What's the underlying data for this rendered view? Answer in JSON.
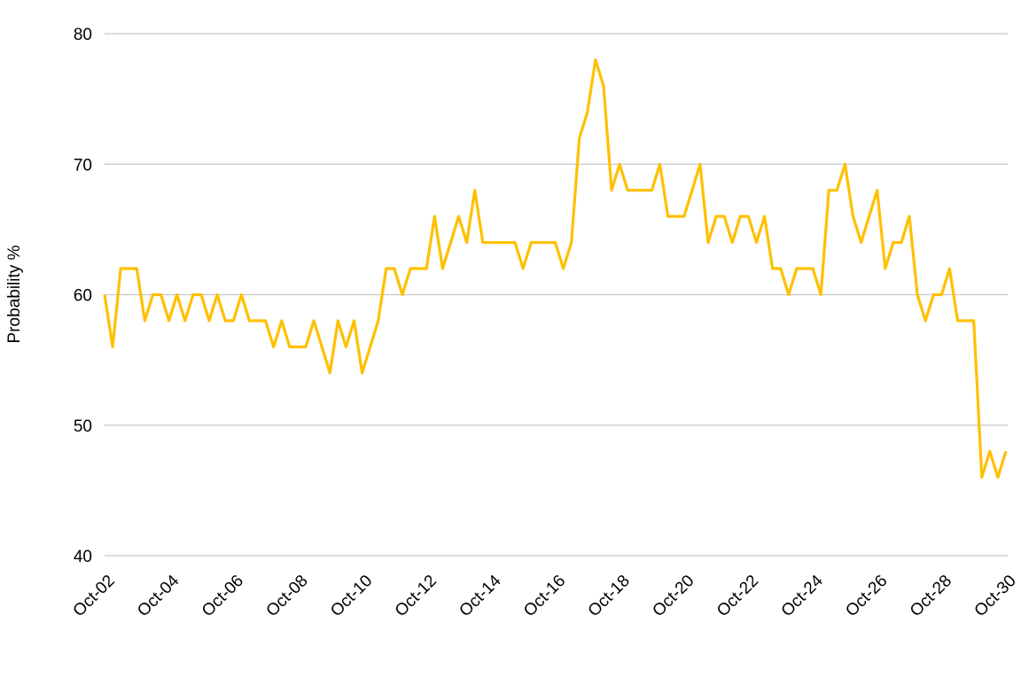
{
  "chart_data": {
    "type": "line",
    "y_label": "Probability  %",
    "categories": [
      "Oct-02",
      null,
      null,
      null,
      null,
      null,
      null,
      null,
      "Oct-04",
      null,
      null,
      null,
      null,
      null,
      null,
      null,
      "Oct-06",
      null,
      null,
      null,
      null,
      null,
      null,
      null,
      "Oct-08",
      null,
      null,
      null,
      null,
      null,
      null,
      null,
      "Oct-10",
      null,
      null,
      null,
      null,
      null,
      null,
      null,
      "Oct-12",
      null,
      null,
      null,
      null,
      null,
      null,
      null,
      "Oct-14",
      null,
      null,
      null,
      null,
      null,
      null,
      null,
      "Oct-16",
      null,
      null,
      null,
      null,
      null,
      null,
      null,
      "Oct-18",
      null,
      null,
      null,
      null,
      null,
      null,
      null,
      "Oct-20",
      null,
      null,
      null,
      null,
      null,
      null,
      null,
      "Oct-22",
      null,
      null,
      null,
      null,
      null,
      null,
      null,
      "Oct-24",
      null,
      null,
      null,
      null,
      null,
      null,
      null,
      "Oct-26",
      null,
      null,
      null,
      null,
      null,
      null,
      null,
      "Oct-28",
      null,
      null,
      null,
      null,
      null,
      null,
      null,
      "Oct-30"
    ],
    "series": [
      {
        "name": "Probability",
        "color": "#ffc000",
        "values": [
          60,
          56,
          62,
          62,
          62,
          58,
          60,
          60,
          58,
          60,
          58,
          60,
          60,
          58,
          60,
          58,
          58,
          60,
          58,
          58,
          58,
          56,
          58,
          56,
          56,
          56,
          58,
          56,
          54,
          58,
          56,
          58,
          54,
          56,
          58,
          62,
          62,
          60,
          62,
          62,
          62,
          66,
          62,
          64,
          66,
          64,
          68,
          64,
          64,
          64,
          64,
          64,
          62,
          64,
          64,
          64,
          64,
          62,
          64,
          72,
          74,
          78,
          76,
          68,
          70,
          68,
          68,
          68,
          68,
          70,
          66,
          66,
          66,
          68,
          70,
          64,
          66,
          66,
          64,
          66,
          66,
          64,
          66,
          62,
          62,
          60,
          62,
          62,
          62,
          60,
          68,
          68,
          70,
          66,
          64,
          66,
          68,
          62,
          64,
          64,
          66,
          60,
          58,
          60,
          60,
          62,
          58,
          58,
          58,
          46,
          48,
          46,
          48
        ]
      }
    ],
    "ylim": [
      40,
      80
    ],
    "yticks": [
      40,
      50,
      60,
      70,
      80
    ],
    "grid": true
  }
}
